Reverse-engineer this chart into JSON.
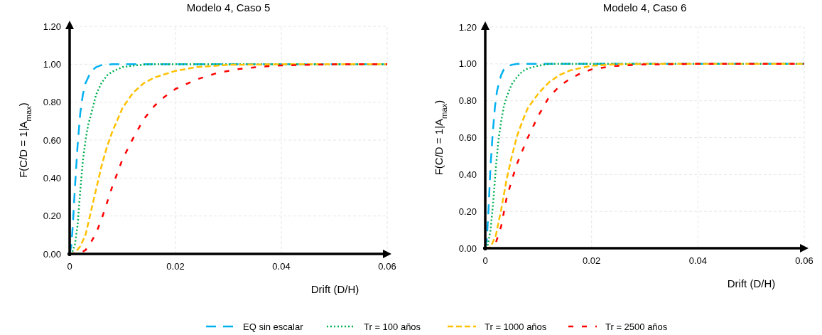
{
  "chart_data": [
    {
      "type": "line",
      "title": "Modelo 4, Caso 5",
      "xlabel": "Drift (D/H)",
      "ylabel": "F(C/D = 1|A$_{max}$)",
      "xlim": [
        0,
        0.06
      ],
      "xticks": [
        0,
        0.02,
        0.04,
        0.06
      ],
      "ylim": [
        0,
        1.2
      ],
      "yticks": [
        {
          "value": 0,
          "label": "0.00"
        },
        {
          "value": 0.2,
          "label": "0.20"
        },
        {
          "value": 0.4,
          "label": "0.40"
        },
        {
          "value": 0.6,
          "label": "0.60"
        },
        {
          "value": 0.8,
          "label": "0.80"
        },
        {
          "value": 1.0,
          "label": "1.00"
        },
        {
          "value": 1.2,
          "label": "1.20"
        }
      ],
      "grid": true,
      "legend": "bottom",
      "series": [
        {
          "name": "EQ sin escalar",
          "color": "#00b0f0",
          "line_style": "dashed",
          "x": [
            0,
            0.0003,
            0.0006,
            0.001,
            0.0015,
            0.002,
            0.0025,
            0.003,
            0.004,
            0.005,
            0.006,
            0.008,
            0.01,
            0.02,
            0.04,
            0.06
          ],
          "values": [
            0,
            0.04,
            0.15,
            0.35,
            0.57,
            0.74,
            0.84,
            0.9,
            0.96,
            0.985,
            0.995,
            1,
            1,
            1,
            1,
            1
          ]
        },
        {
          "name": "Tr = 100 años",
          "color": "#00b050",
          "line_style": "dotted",
          "x": [
            0,
            0.0005,
            0.001,
            0.0015,
            0.002,
            0.0025,
            0.003,
            0.0035,
            0.004,
            0.005,
            0.006,
            0.007,
            0.008,
            0.01,
            0.012,
            0.015,
            0.02,
            0.06
          ],
          "values": [
            0,
            0.01,
            0.05,
            0.15,
            0.33,
            0.49,
            0.6,
            0.68,
            0.73,
            0.84,
            0.9,
            0.94,
            0.96,
            0.985,
            0.993,
            1,
            1,
            1
          ]
        },
        {
          "name": "Tr = 1000 años",
          "color": "#ffc000",
          "line_style": "dashed",
          "x": [
            0,
            0.001,
            0.002,
            0.003,
            0.004,
            0.005,
            0.006,
            0.007,
            0.008,
            0.01,
            0.012,
            0.014,
            0.016,
            0.02,
            0.024,
            0.03,
            0.04,
            0.06
          ],
          "values": [
            0,
            0.005,
            0.04,
            0.1,
            0.22,
            0.34,
            0.46,
            0.56,
            0.64,
            0.77,
            0.85,
            0.9,
            0.93,
            0.965,
            0.985,
            0.997,
            1,
            1
          ]
        },
        {
          "name": "Tr = 2500 años",
          "color": "#ff0000",
          "line_style": "dashed",
          "x": [
            0,
            0.002,
            0.003,
            0.004,
            0.005,
            0.006,
            0.008,
            0.01,
            0.012,
            0.014,
            0.016,
            0.018,
            0.02,
            0.024,
            0.028,
            0.032,
            0.036,
            0.04,
            0.05,
            0.06
          ],
          "values": [
            0,
            0.005,
            0.02,
            0.06,
            0.11,
            0.18,
            0.35,
            0.5,
            0.61,
            0.71,
            0.78,
            0.83,
            0.87,
            0.92,
            0.955,
            0.975,
            0.987,
            0.994,
            1,
            1
          ]
        }
      ]
    },
    {
      "type": "line",
      "title": "Modelo 4, Caso 6",
      "xlabel": "Drift (D/H)",
      "ylabel": "F(C/D = 1|A$_{max}$)",
      "xlim": [
        0,
        0.06
      ],
      "xticks": [
        0,
        0.02,
        0.04,
        0.06
      ],
      "ylim": [
        0,
        1.2
      ],
      "yticks": [
        {
          "value": 0,
          "label": "0.00"
        },
        {
          "value": 0.2,
          "label": "0.20"
        },
        {
          "value": 0.4,
          "label": "0.40"
        },
        {
          "value": 0.6,
          "label": "0.60"
        },
        {
          "value": 0.8,
          "label": "0.80"
        },
        {
          "value": 1.0,
          "label": "1.00"
        },
        {
          "value": 1.2,
          "label": "1.20"
        }
      ],
      "grid": true,
      "series": [
        {
          "color": "#00b0f0",
          "line_style": "dashed",
          "x": [
            0,
            0.0003,
            0.0006,
            0.001,
            0.0014,
            0.0018,
            0.0022,
            0.0026,
            0.003,
            0.0035,
            0.004,
            0.005,
            0.006,
            0.008,
            0.01,
            0.06
          ],
          "values": [
            0,
            0.05,
            0.2,
            0.45,
            0.62,
            0.76,
            0.85,
            0.9,
            0.94,
            0.97,
            0.985,
            0.995,
            1,
            1,
            1,
            1
          ]
        },
        {
          "color": "#00b050",
          "line_style": "dotted",
          "x": [
            0,
            0.0005,
            0.001,
            0.0015,
            0.002,
            0.0025,
            0.003,
            0.0035,
            0.004,
            0.005,
            0.006,
            0.007,
            0.008,
            0.01,
            0.012,
            0.06
          ],
          "values": [
            0,
            0.02,
            0.1,
            0.25,
            0.44,
            0.59,
            0.69,
            0.77,
            0.82,
            0.89,
            0.93,
            0.96,
            0.975,
            0.99,
            1,
            1
          ]
        },
        {
          "color": "#ffc000",
          "line_style": "dashed",
          "x": [
            0,
            0.001,
            0.002,
            0.003,
            0.004,
            0.005,
            0.006,
            0.007,
            0.008,
            0.009,
            0.01,
            0.012,
            0.014,
            0.016,
            0.02,
            0.024,
            0.03,
            0.06
          ],
          "values": [
            0,
            0.005,
            0.07,
            0.21,
            0.37,
            0.5,
            0.61,
            0.69,
            0.76,
            0.8,
            0.84,
            0.9,
            0.94,
            0.965,
            0.99,
            0.997,
            1,
            1
          ]
        },
        {
          "color": "#ff0000",
          "line_style": "dashed",
          "x": [
            0,
            0.001,
            0.002,
            0.003,
            0.004,
            0.005,
            0.006,
            0.007,
            0.008,
            0.009,
            0.01,
            0.012,
            0.014,
            0.016,
            0.018,
            0.02,
            0.024,
            0.03,
            0.04,
            0.06
          ],
          "values": [
            0,
            0.002,
            0.03,
            0.12,
            0.27,
            0.37,
            0.46,
            0.53,
            0.6,
            0.66,
            0.72,
            0.82,
            0.88,
            0.92,
            0.95,
            0.97,
            0.988,
            0.997,
            1,
            1
          ]
        }
      ]
    }
  ]
}
